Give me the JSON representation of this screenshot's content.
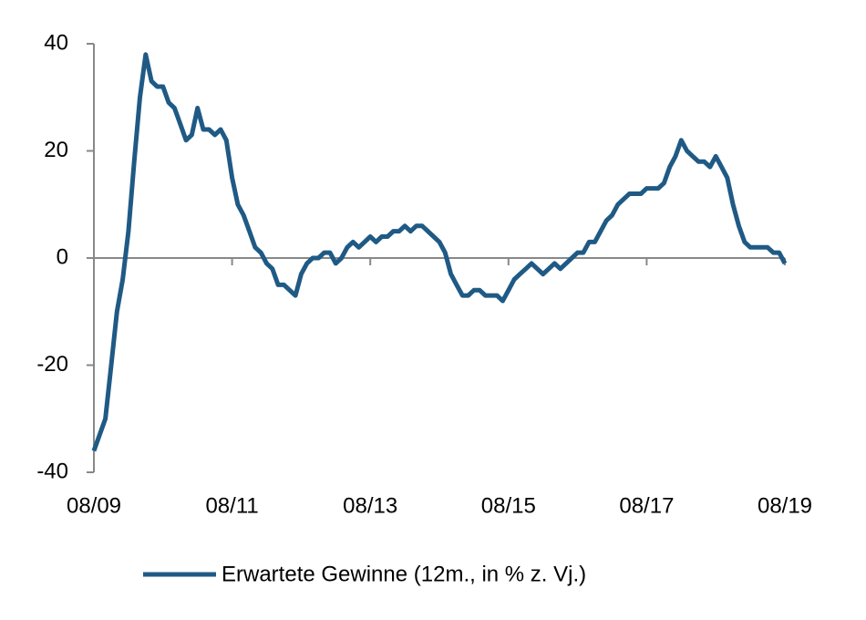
{
  "chart_data": {
    "type": "line",
    "x": [
      "08/09",
      "09/09",
      "10/09",
      "11/09",
      "12/09",
      "01/10",
      "02/10",
      "03/10",
      "04/10",
      "05/10",
      "06/10",
      "07/10",
      "08/10",
      "09/10",
      "10/10",
      "11/10",
      "12/10",
      "01/11",
      "02/11",
      "03/11",
      "04/11",
      "05/11",
      "06/11",
      "07/11",
      "08/11",
      "09/11",
      "10/11",
      "11/11",
      "12/11",
      "01/12",
      "02/12",
      "03/12",
      "04/12",
      "05/12",
      "06/12",
      "07/12",
      "08/12",
      "09/12",
      "10/12",
      "11/12",
      "12/12",
      "01/13",
      "02/13",
      "03/13",
      "04/13",
      "05/13",
      "06/13",
      "07/13",
      "08/13",
      "09/13",
      "10/13",
      "11/13",
      "12/13",
      "01/14",
      "02/14",
      "03/14",
      "04/14",
      "05/14",
      "06/14",
      "07/14",
      "08/14",
      "09/14",
      "10/14",
      "11/14",
      "12/14",
      "01/15",
      "02/15",
      "03/15",
      "04/15",
      "05/15",
      "06/15",
      "07/15",
      "08/15",
      "09/15",
      "10/15",
      "11/15",
      "12/15",
      "01/16",
      "02/16",
      "03/16",
      "04/16",
      "05/16",
      "06/16",
      "07/16",
      "08/16",
      "09/16",
      "10/16",
      "11/16",
      "12/16",
      "01/17",
      "02/17",
      "03/17",
      "04/17",
      "05/17",
      "06/17",
      "07/17",
      "08/17",
      "09/17",
      "10/17",
      "11/17",
      "12/17",
      "01/18",
      "02/18",
      "03/18",
      "04/18",
      "05/18",
      "06/18",
      "07/18",
      "08/18",
      "09/18",
      "10/18",
      "11/18",
      "12/18",
      "01/19",
      "02/19",
      "03/19",
      "04/19",
      "05/19",
      "06/19",
      "07/19",
      "08/19"
    ],
    "series": [
      {
        "name": "Erwartete Gewinne (12m., in % z. Vj.)",
        "color": "#1f5a85",
        "values": [
          -36,
          -33,
          -30,
          -20,
          -10,
          -4,
          5,
          18,
          30,
          38,
          33,
          32,
          32,
          29,
          28,
          25,
          22,
          23,
          28,
          24,
          24,
          23,
          24,
          22,
          15,
          10,
          8,
          5,
          2,
          1,
          -1,
          -2,
          -5,
          -5,
          -6,
          -7,
          -3,
          -1,
          0,
          0,
          1,
          1,
          -1,
          0,
          2,
          3,
          2,
          3,
          4,
          3,
          4,
          4,
          5,
          5,
          6,
          5,
          6,
          6,
          5,
          4,
          3,
          1,
          -3,
          -5,
          -7,
          -7,
          -6,
          -6,
          -7,
          -7,
          -7,
          -8,
          -6,
          -4,
          -3,
          -2,
          -1,
          -2,
          -3,
          -2,
          -1,
          -2,
          -1,
          0,
          1,
          1,
          3,
          3,
          5,
          7,
          8,
          10,
          11,
          12,
          12,
          12,
          13,
          13,
          13,
          14,
          17,
          19,
          22,
          20,
          19,
          18,
          18,
          17,
          19,
          17,
          15,
          10,
          6,
          3,
          2,
          2,
          2,
          2,
          1,
          1,
          -1
        ]
      }
    ],
    "xticks": [
      "08/09",
      "08/11",
      "08/13",
      "08/15",
      "08/17",
      "08/19"
    ],
    "ylim": [
      -40,
      40
    ],
    "yticks": [
      -40,
      -20,
      0,
      20,
      40
    ],
    "legend": "bottom"
  }
}
